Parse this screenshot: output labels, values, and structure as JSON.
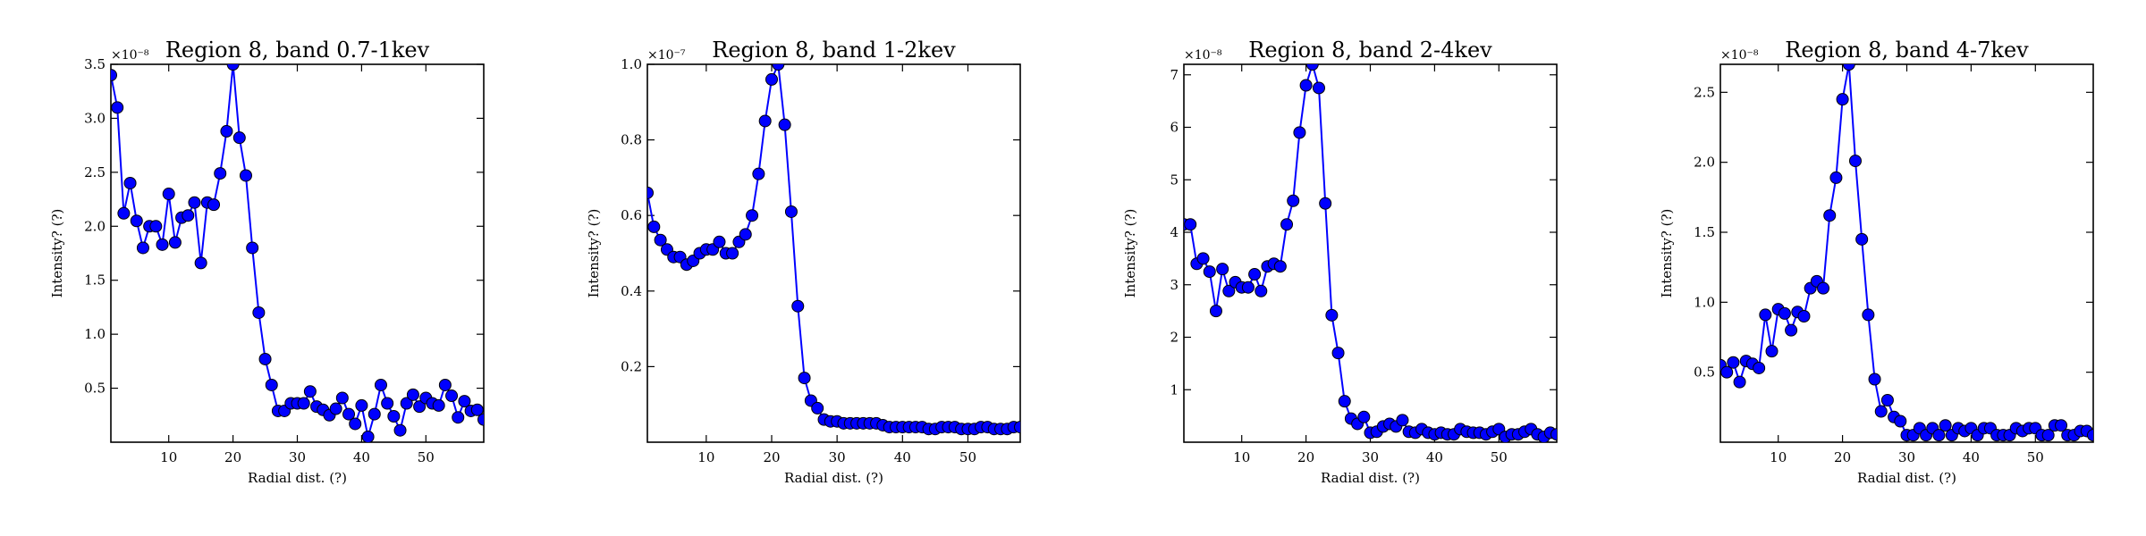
{
  "chart_data": [
    {
      "type": "line",
      "title": "Region 8, band 0.7-1kev",
      "xlabel": "Radial dist. (?)",
      "ylabel": "Intensity? (?)",
      "y_multiplier": "×10⁻⁸",
      "xlim": [
        1,
        59
      ],
      "ylim": [
        0.0,
        3.5
      ],
      "xticks": [
        10,
        20,
        30,
        40,
        50
      ],
      "yticks": [
        0.5,
        1.0,
        1.5,
        2.0,
        2.5,
        3.0,
        3.5
      ],
      "yticklabels": [
        "0.5",
        "1.0",
        "1.5",
        "2.0",
        "2.5",
        "3.0",
        "3.5"
      ],
      "x": [
        1,
        2,
        3,
        4,
        5,
        6,
        7,
        8,
        9,
        10,
        11,
        12,
        13,
        14,
        15,
        16,
        17,
        18,
        19,
        20,
        21,
        22,
        23,
        24,
        25,
        26,
        27,
        28,
        29,
        30,
        31,
        32,
        33,
        34,
        35,
        36,
        37,
        38,
        39,
        40,
        41,
        42,
        43,
        44,
        45,
        46,
        47,
        48,
        49,
        50,
        51,
        52,
        53,
        54,
        55,
        56,
        57,
        58,
        59
      ],
      "y": [
        3.4,
        3.1,
        2.12,
        2.4,
        2.05,
        1.8,
        2.0,
        2.0,
        1.83,
        2.3,
        1.85,
        2.08,
        2.1,
        2.22,
        1.66,
        2.22,
        2.2,
        2.49,
        2.88,
        3.5,
        2.82,
        2.47,
        1.8,
        1.2,
        0.77,
        0.53,
        0.29,
        0.29,
        0.36,
        0.36,
        0.36,
        0.47,
        0.33,
        0.3,
        0.25,
        0.31,
        0.41,
        0.26,
        0.17,
        0.34,
        0.05,
        0.26,
        0.53,
        0.36,
        0.24,
        0.11,
        0.36,
        0.44,
        0.33,
        0.41,
        0.36,
        0.34,
        0.53,
        0.43,
        0.23,
        0.38,
        0.29,
        0.3,
        0.21
      ]
    },
    {
      "type": "line",
      "title": "Region 8, band 1-2kev",
      "xlabel": "Radial dist. (?)",
      "ylabel": "Intensity? (?)",
      "y_multiplier": "×10⁻⁷",
      "xlim": [
        1,
        58
      ],
      "ylim": [
        0.0,
        1.0
      ],
      "xticks": [
        10,
        20,
        30,
        40,
        50
      ],
      "yticks": [
        0.2,
        0.4,
        0.6,
        0.8,
        1.0
      ],
      "yticklabels": [
        "0.2",
        "0.4",
        "0.6",
        "0.8",
        "1.0"
      ],
      "x": [
        1,
        2,
        3,
        4,
        5,
        6,
        7,
        8,
        9,
        10,
        11,
        12,
        13,
        14,
        15,
        16,
        17,
        18,
        19,
        20,
        21,
        22,
        23,
        24,
        25,
        26,
        27,
        28,
        29,
        30,
        31,
        32,
        33,
        34,
        35,
        36,
        37,
        38,
        39,
        40,
        41,
        42,
        43,
        44,
        45,
        46,
        47,
        48,
        49,
        50,
        51,
        52,
        53,
        54,
        55,
        56,
        57,
        58
      ],
      "y": [
        0.66,
        0.57,
        0.535,
        0.51,
        0.49,
        0.49,
        0.47,
        0.48,
        0.5,
        0.51,
        0.51,
        0.53,
        0.5,
        0.5,
        0.53,
        0.55,
        0.6,
        0.71,
        0.85,
        0.96,
        1.0,
        0.84,
        0.61,
        0.36,
        0.17,
        0.11,
        0.09,
        0.06,
        0.055,
        0.055,
        0.05,
        0.05,
        0.05,
        0.05,
        0.05,
        0.05,
        0.045,
        0.04,
        0.04,
        0.04,
        0.04,
        0.04,
        0.04,
        0.035,
        0.035,
        0.04,
        0.04,
        0.04,
        0.035,
        0.035,
        0.035,
        0.04,
        0.04,
        0.035,
        0.035,
        0.035,
        0.04,
        0.04
      ]
    },
    {
      "type": "line",
      "title": "Region 8, band 2-4kev",
      "xlabel": "Radial dist. (?)",
      "ylabel": "Intensity? (?)",
      "y_multiplier": "×10⁻⁸",
      "xlim": [
        1,
        59
      ],
      "ylim": [
        0.0,
        7.2
      ],
      "xticks": [
        10,
        20,
        30,
        40,
        50
      ],
      "yticks": [
        1,
        2,
        3,
        4,
        5,
        6,
        7
      ],
      "yticklabels": [
        "1",
        "2",
        "3",
        "4",
        "5",
        "6",
        "7"
      ],
      "x": [
        1,
        2,
        3,
        4,
        5,
        6,
        7,
        8,
        9,
        10,
        11,
        12,
        13,
        14,
        15,
        16,
        17,
        18,
        19,
        20,
        21,
        22,
        23,
        24,
        25,
        26,
        27,
        28,
        29,
        30,
        31,
        32,
        33,
        34,
        35,
        36,
        37,
        38,
        39,
        40,
        41,
        42,
        43,
        44,
        45,
        46,
        47,
        48,
        49,
        50,
        51,
        52,
        53,
        54,
        55,
        56,
        57,
        58,
        59
      ],
      "y": [
        4.15,
        4.15,
        3.4,
        3.5,
        3.25,
        2.5,
        3.3,
        2.88,
        3.05,
        2.95,
        2.95,
        3.2,
        2.88,
        3.35,
        3.4,
        3.35,
        4.15,
        4.6,
        5.9,
        6.8,
        7.2,
        6.75,
        4.55,
        2.42,
        1.7,
        0.78,
        0.45,
        0.35,
        0.48,
        0.18,
        0.2,
        0.3,
        0.35,
        0.3,
        0.42,
        0.2,
        0.18,
        0.25,
        0.18,
        0.15,
        0.18,
        0.15,
        0.15,
        0.25,
        0.2,
        0.18,
        0.18,
        0.15,
        0.2,
        0.25,
        0.1,
        0.15,
        0.15,
        0.2,
        0.25,
        0.15,
        0.1,
        0.18,
        0.15
      ]
    },
    {
      "type": "line",
      "title": "Region 8, band 4-7kev",
      "xlabel": "Radial dist. (?)",
      "ylabel": "Intensity? (?)",
      "y_multiplier": "×10⁻⁸",
      "xlim": [
        1,
        59
      ],
      "ylim": [
        0.0,
        2.7
      ],
      "xticks": [
        10,
        20,
        30,
        40,
        50
      ],
      "yticks": [
        0.5,
        1.0,
        1.5,
        2.0,
        2.5
      ],
      "yticklabels": [
        "0.5",
        "1.0",
        "1.5",
        "2.0",
        "2.5"
      ],
      "x": [
        1,
        2,
        3,
        4,
        5,
        6,
        7,
        8,
        9,
        10,
        11,
        12,
        13,
        14,
        15,
        16,
        17,
        18,
        19,
        20,
        21,
        22,
        23,
        24,
        25,
        26,
        27,
        28,
        29,
        30,
        31,
        32,
        33,
        34,
        35,
        36,
        37,
        38,
        39,
        40,
        41,
        42,
        43,
        44,
        45,
        46,
        47,
        48,
        49,
        50,
        51,
        52,
        53,
        54,
        55,
        56,
        57,
        58,
        59
      ],
      "y": [
        0.55,
        0.5,
        0.57,
        0.43,
        0.58,
        0.56,
        0.53,
        0.91,
        0.65,
        0.95,
        0.92,
        0.8,
        0.93,
        0.9,
        1.1,
        1.15,
        1.1,
        1.62,
        1.89,
        2.45,
        2.7,
        2.01,
        1.45,
        0.91,
        0.45,
        0.22,
        0.3,
        0.18,
        0.15,
        0.05,
        0.05,
        0.1,
        0.05,
        0.1,
        0.05,
        0.12,
        0.05,
        0.1,
        0.08,
        0.1,
        0.05,
        0.1,
        0.1,
        0.05,
        0.05,
        0.05,
        0.1,
        0.08,
        0.1,
        0.1,
        0.05,
        0.05,
        0.12,
        0.12,
        0.05,
        0.05,
        0.08,
        0.08,
        0.05
      ]
    }
  ]
}
